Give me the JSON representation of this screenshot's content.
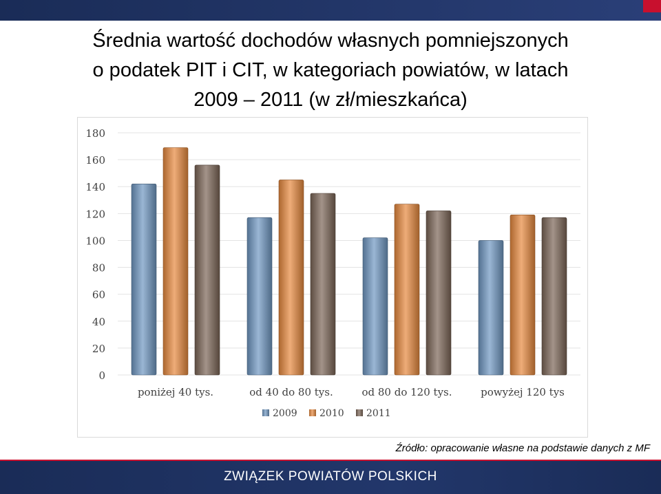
{
  "slide": {
    "title_lines": [
      "Średnia wartość dochodów własnych pomniejszonych",
      "o podatek PIT i CIT, w kategoriach powiatów, w latach",
      "2009 – 2011 (w zł/mieszkańca)"
    ],
    "source": "Źródło: opracowanie własne na podstawie danych z MF",
    "footer": "ZWIĄZEK POWIATÓW POLSKICH",
    "colors": {
      "header_bar": "#1a2c57",
      "accent": "#c8102e"
    }
  },
  "chart_data": {
    "type": "bar",
    "categories": [
      "poniżej 40 tys.",
      "od 40 do 80 tys.",
      "od 80 do 120 tys.",
      "powyżej 120 tys"
    ],
    "series": [
      {
        "name": "2009",
        "values": [
          142,
          117,
          102,
          100
        ],
        "color": "#6f97c1"
      },
      {
        "name": "2010",
        "values": [
          169,
          145,
          127,
          119
        ],
        "color": "#e6893e"
      },
      {
        "name": "2011",
        "values": [
          156,
          135,
          122,
          117
        ],
        "color": "#7b6556"
      }
    ],
    "yticks": [
      0,
      20,
      40,
      60,
      80,
      100,
      120,
      140,
      160,
      180
    ],
    "ylim": [
      0,
      180
    ],
    "grid": true,
    "legend": "bottom",
    "title": "",
    "xlabel": "",
    "ylabel": ""
  }
}
